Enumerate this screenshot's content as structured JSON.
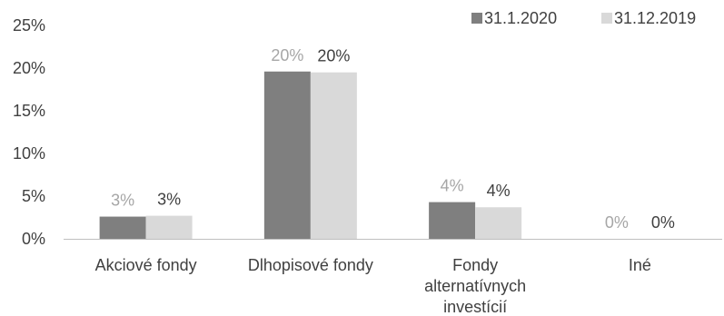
{
  "chart_data": {
    "type": "bar",
    "title": "",
    "xlabel": "",
    "ylabel": "",
    "ylim": [
      0,
      25
    ],
    "yticks": [
      "0%",
      "5%",
      "10%",
      "15%",
      "20%",
      "25%"
    ],
    "ytick_values": [
      0,
      5,
      10,
      15,
      20,
      25
    ],
    "grid": false,
    "legend_position": "top-right",
    "categories": [
      [
        "Akciové fondy"
      ],
      [
        "Dlhopisové fondy"
      ],
      [
        "Fondy",
        "alternatívnych",
        "investícií"
      ],
      [
        "Iné"
      ]
    ],
    "series": [
      {
        "name": "31.1.2020",
        "color": "#7f7f7f",
        "label_color": "#a6a6a6",
        "values": [
          2.6,
          19.6,
          4.3,
          0
        ],
        "labels": [
          "3%",
          "20%",
          "4%",
          "0%"
        ]
      },
      {
        "name": "31.12.2019",
        "color": "#d9d9d9",
        "label_color": "#404040",
        "values": [
          2.7,
          19.5,
          3.7,
          0
        ],
        "labels": [
          "3%",
          "20%",
          "4%",
          "0%"
        ]
      }
    ]
  }
}
